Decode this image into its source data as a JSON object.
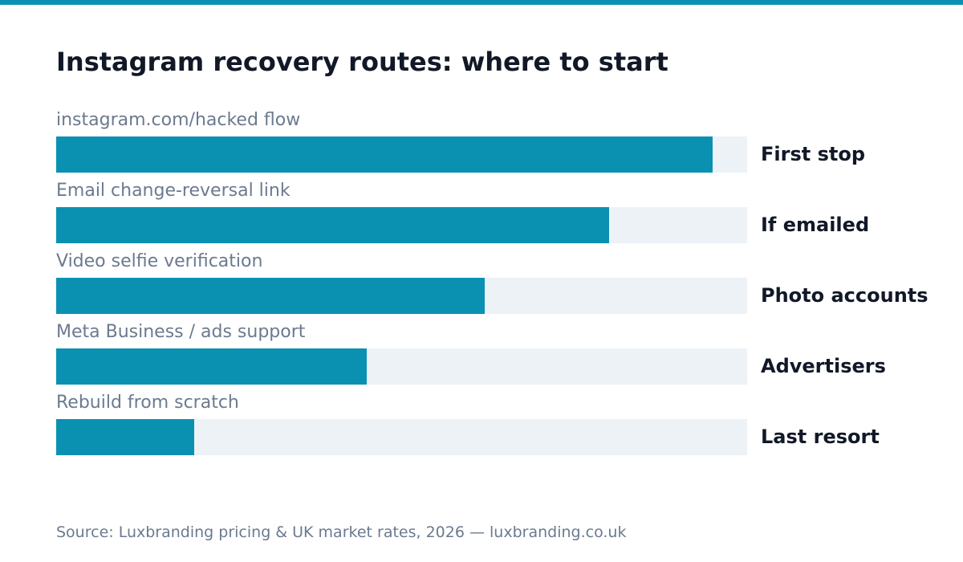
{
  "colors": {
    "accent": "#0a91b2",
    "track": "#edf2f7"
  },
  "chart_data": {
    "type": "bar",
    "orientation": "horizontal",
    "title": "Instagram recovery routes: where to start",
    "categories": [
      "instagram.com/hacked flow",
      "Email change-reversal link",
      "Video selfie verification",
      "Meta Business / ads support",
      "Rebuild from scratch"
    ],
    "values": [
      95,
      80,
      62,
      45,
      20
    ],
    "labels": [
      "First stop",
      "If emailed",
      "Photo accounts",
      "Advertisers",
      "Last resort"
    ],
    "xlim": [
      0,
      100
    ],
    "grid": false
  },
  "footer": {
    "source": "Source: Luxbranding pricing & UK market rates, 2026 — luxbranding.co.uk"
  }
}
